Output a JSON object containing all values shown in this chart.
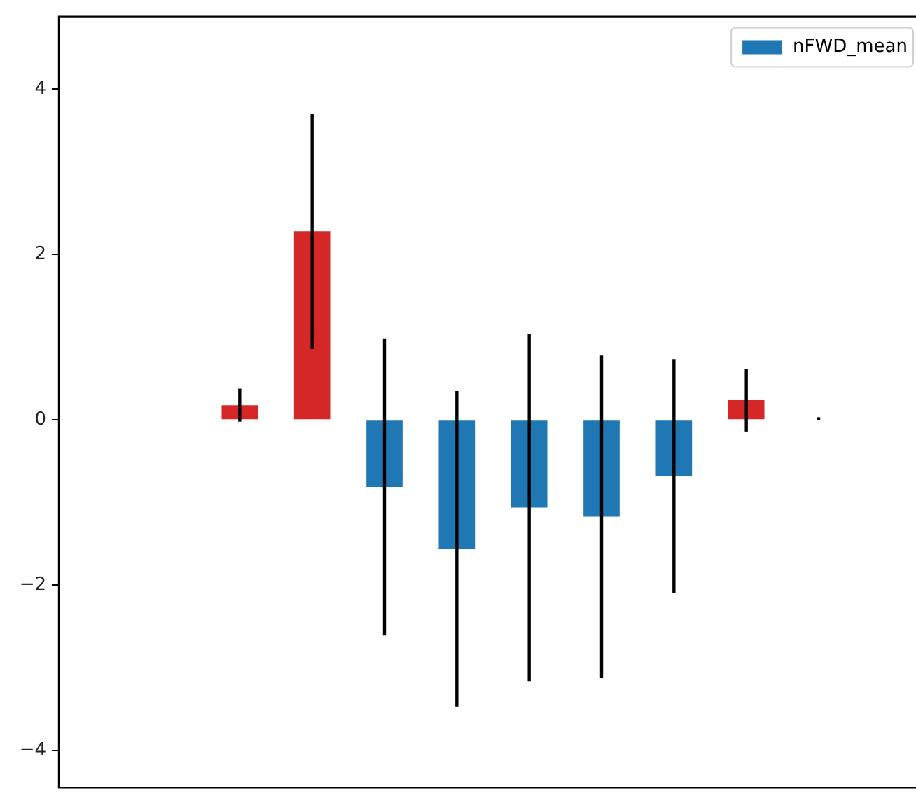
{
  "chart_data": {
    "type": "bar",
    "categories": [
      null,
      null,
      null,
      null,
      null,
      null,
      null,
      null,
      null,
      null,
      null,
      null
    ],
    "series": [
      {
        "name": "nFWD_mean",
        "color": "#1f77b4",
        "colors": [
          "#1f77b4",
          "#1f77b4",
          "#d62728",
          "#d62728",
          "#1f77b4",
          "#1f77b4",
          "#1f77b4",
          "#1f77b4",
          "#1f77b4",
          "#d62728",
          "#1f77b4",
          "#1f77b4"
        ],
        "values": [
          null,
          null,
          0.18,
          2.28,
          -0.81,
          -1.56,
          -1.06,
          -1.17,
          -0.68,
          0.24,
          0,
          null
        ],
        "errors": [
          null,
          null,
          0.2,
          1.42,
          1.79,
          1.91,
          2.1,
          1.95,
          1.41,
          0.38,
          0,
          null
        ]
      }
    ],
    "ylim": [
      -4.45,
      4.88
    ],
    "yticks": [
      {
        "value": -4,
        "label": "−4"
      },
      {
        "value": -2,
        "label": "−2"
      },
      0,
      2,
      4
    ],
    "tick_labels": "y",
    "grid": false,
    "legend": "top right"
  }
}
